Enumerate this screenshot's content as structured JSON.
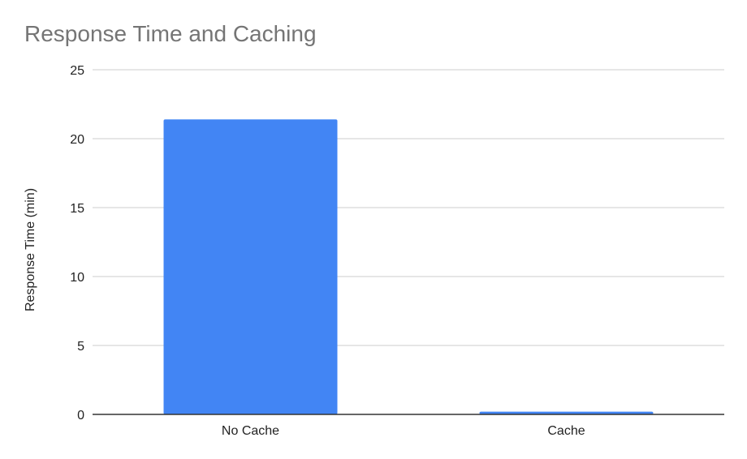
{
  "chart_data": {
    "type": "bar",
    "title": "Response Time and Caching",
    "xlabel": "",
    "ylabel": "Response Time (min)",
    "categories": [
      "No Cache",
      "Cache"
    ],
    "values": [
      21.4,
      0.2
    ],
    "ylim": [
      0,
      25
    ],
    "yticks": [
      "0",
      "5",
      "10",
      "15",
      "20",
      "25"
    ],
    "grid": true,
    "legend": "none",
    "colors": {
      "bar": "#4285f4",
      "grid": "#cccccc",
      "axis": "#333333",
      "title": "#757575"
    }
  }
}
